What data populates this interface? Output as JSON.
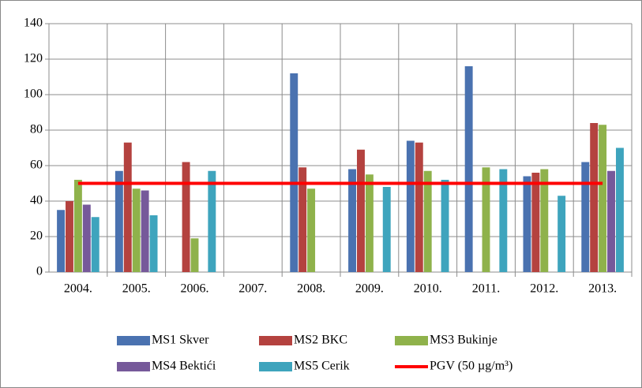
{
  "chart_data": {
    "type": "bar",
    "categories": [
      "2004.",
      "2005.",
      "2006.",
      "2007.",
      "2008.",
      "2009.",
      "2010.",
      "2011.",
      "2012.",
      "2013."
    ],
    "series": [
      {
        "name": "MS1 Skver",
        "color": "#4a72b0",
        "values": [
          35,
          57,
          null,
          null,
          112,
          58,
          74,
          116,
          54,
          62
        ]
      },
      {
        "name": "MS2 BKC",
        "color": "#b4423f",
        "values": [
          40,
          73,
          62,
          null,
          59,
          69,
          73,
          null,
          56,
          84
        ]
      },
      {
        "name": "MS3 Bukinje",
        "color": "#8fb24b",
        "values": [
          52,
          47,
          19,
          null,
          47,
          55,
          57,
          59,
          58,
          83
        ]
      },
      {
        "name": "MS4 Bektići",
        "color": "#76599a",
        "values": [
          38,
          46,
          null,
          null,
          null,
          null,
          null,
          null,
          null,
          57
        ]
      },
      {
        "name": "MS5 Cerik",
        "color": "#3ea4bd",
        "values": [
          31,
          32,
          57,
          null,
          null,
          48,
          52,
          58,
          43,
          70
        ]
      },
      {
        "name": "PGV (50 µg/m³)",
        "color": "#ff0000",
        "type": "line",
        "values": [
          50,
          50,
          50,
          50,
          50,
          50,
          50,
          50,
          50,
          50
        ]
      }
    ],
    "ylim": [
      0,
      140
    ],
    "yticks": [
      0,
      20,
      40,
      60,
      80,
      100,
      120,
      140
    ],
    "grid": true
  }
}
